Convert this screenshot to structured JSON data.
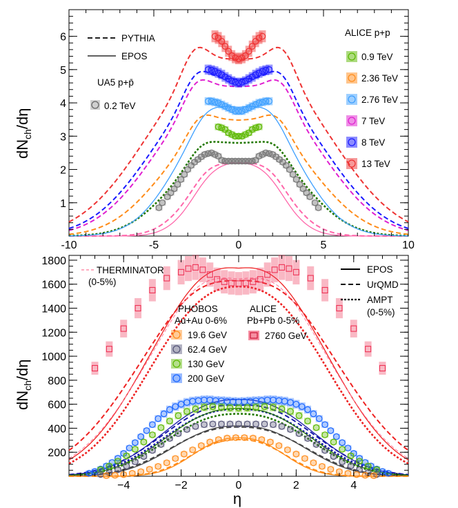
{
  "chart_data": [
    {
      "type": "scatter",
      "panel": "top",
      "ylabel_main": "dN",
      "ylabel_sub": "ch",
      "ylabel_tail": "/dη",
      "xlabel": "",
      "xlim": [
        -10,
        10
      ],
      "ylim": [
        0,
        6.8
      ],
      "xticks": [
        "-10",
        "-5",
        "0",
        "5",
        "10"
      ],
      "yticks": [
        "1",
        "2",
        "3",
        "4",
        "5",
        "6"
      ],
      "legend_models": [
        {
          "label": "PYTHIA",
          "dash": "dashed"
        },
        {
          "label": "EPOS",
          "dash": "solid"
        }
      ],
      "ua5_title": "UA5 p+p̄",
      "ua5_entry": {
        "label": "0.2 TeV",
        "color": "#888888"
      },
      "alice_title": "ALICE p+p",
      "alice_entries": [
        {
          "label": "0.9 TeV",
          "color": "#5cb800"
        },
        {
          "label": "2.36 TeV",
          "color": "#ff8c1a"
        },
        {
          "label": "2.76 TeV",
          "color": "#3d9fff"
        },
        {
          "label": "7 TeV",
          "color": "#e020d0"
        },
        {
          "label": "8 TeV",
          "color": "#1a1aff"
        },
        {
          "label": "13 TeV",
          "color": "#ee3333"
        }
      ],
      "series": [
        {
          "name": "0.2 TeV data",
          "color": "#777777",
          "x": [
            -4.7,
            -4.5,
            -4.2,
            -4.0,
            -3.8,
            -3.6,
            -3.4,
            -3.2,
            -3.0,
            -2.8,
            -2.6,
            -2.4,
            -2.2,
            -2.0,
            -1.8,
            -1.6,
            -1.4,
            -1.2,
            -1.0,
            -0.8,
            -0.6,
            -0.4,
            -0.2,
            0,
            0.2,
            0.4,
            0.6,
            0.8,
            1.0,
            1.2,
            1.4,
            1.6,
            1.8,
            2.0,
            2.2,
            2.4,
            2.6,
            2.8,
            3.0,
            3.2,
            3.4,
            3.6,
            3.8,
            4.0,
            4.2,
            4.5,
            4.7
          ],
          "y": [
            0.85,
            1.0,
            1.18,
            1.3,
            1.42,
            1.55,
            1.7,
            1.85,
            2.0,
            2.12,
            2.22,
            2.3,
            2.38,
            2.45,
            2.48,
            2.5,
            2.45,
            2.4,
            2.28,
            2.25,
            2.25,
            2.25,
            2.25,
            2.25,
            2.25,
            2.25,
            2.25,
            2.25,
            2.28,
            2.4,
            2.45,
            2.5,
            2.48,
            2.45,
            2.38,
            2.3,
            2.22,
            2.12,
            2.0,
            1.85,
            1.7,
            1.55,
            1.42,
            1.3,
            1.18,
            1.0,
            0.85
          ]
        },
        {
          "name": "0.9 TeV data",
          "color": "#5cb800",
          "x": [
            -1.2,
            -1.0,
            -0.8,
            -0.6,
            -0.4,
            -0.2,
            0,
            0.2,
            0.4,
            0.6,
            0.8,
            1.0,
            1.2
          ],
          "y": [
            3.28,
            3.25,
            3.2,
            3.1,
            3.05,
            3.0,
            3.0,
            3.0,
            3.05,
            3.1,
            3.2,
            3.25,
            3.28
          ]
        },
        {
          "name": "2.76 TeV data",
          "color": "#3d9fff",
          "x": [
            -1.8,
            -1.6,
            -1.4,
            -1.2,
            -1.0,
            -0.8,
            -0.6,
            -0.4,
            -0.2,
            0,
            0.2,
            0.4,
            0.6,
            0.8,
            1.0,
            1.2,
            1.4,
            1.6,
            1.8
          ],
          "y": [
            4.05,
            4.05,
            4.02,
            4.0,
            3.95,
            3.9,
            3.85,
            3.8,
            3.75,
            3.75,
            3.75,
            3.8,
            3.85,
            3.9,
            3.95,
            4.0,
            4.02,
            4.05,
            4.05
          ]
        },
        {
          "name": "8 TeV data",
          "color": "#1a1aff",
          "x": [
            -1.8,
            -1.6,
            -1.4,
            -1.2,
            -1.0,
            -0.8,
            -0.6,
            -0.4,
            -0.2,
            0,
            0.2,
            0.4,
            0.6,
            0.8,
            1.0,
            1.2,
            1.4,
            1.6,
            1.8
          ],
          "y": [
            5.0,
            4.98,
            4.95,
            4.9,
            4.85,
            4.78,
            4.72,
            4.66,
            4.62,
            4.6,
            4.62,
            4.66,
            4.72,
            4.78,
            4.85,
            4.9,
            4.95,
            4.98,
            5.0
          ]
        },
        {
          "name": "13 TeV data",
          "color": "#ee3333",
          "x": [
            -1.4,
            -1.2,
            -1.0,
            -0.8,
            -0.6,
            -0.4,
            -0.2,
            0,
            0.2,
            0.4,
            0.6,
            0.8,
            1.0,
            1.2,
            1.4
          ],
          "y": [
            6.0,
            5.95,
            5.85,
            5.7,
            5.55,
            5.42,
            5.35,
            5.32,
            5.35,
            5.42,
            5.55,
            5.7,
            5.85,
            5.95,
            6.0
          ]
        }
      ],
      "curves": [
        {
          "name": "PYTHIA 0.2 TeV",
          "color": "#ff66aa",
          "dash": "dashed",
          "amp": 2.38,
          "dip": 0.08,
          "peak": 2.0,
          "width": 3.5
        },
        {
          "name": "EPOS 0.2 TeV",
          "color": "#ff66aa",
          "dash": "solid",
          "amp": 2.3,
          "dip": 0.05,
          "peak": 2.0,
          "width": 3.1
        },
        {
          "name": "PYTHIA 0.9 TeV",
          "color": "#227700",
          "dash": "dotted",
          "amp": 3.1,
          "dip": 0.1,
          "peak": 2.2,
          "width": 4.8
        },
        {
          "name": "PYTHIA 2.36 TeV",
          "color": "#ff8c1a",
          "dash": "dashed",
          "amp": 3.95,
          "dip": 0.12,
          "peak": 2.3,
          "width": 5.5
        },
        {
          "name": "EPOS 2.76 TeV",
          "color": "#3d9fff",
          "dash": "solid",
          "amp": 4.15,
          "dip": 0.07,
          "peak": 2.0,
          "width": 4.5
        },
        {
          "name": "PYTHIA 7 TeV",
          "color": "#e020d0",
          "dash": "dashed",
          "amp": 5.1,
          "dip": 0.12,
          "peak": 2.5,
          "width": 6.1
        },
        {
          "name": "PYTHIA 8 TeV",
          "color": "#1a1aff",
          "dash": "dashed",
          "amp": 5.35,
          "dip": 0.12,
          "peak": 2.5,
          "width": 6.3
        },
        {
          "name": "PYTHIA 13 TeV",
          "color": "#ee3333",
          "dash": "dashed",
          "amp": 6.1,
          "dip": 0.13,
          "peak": 2.6,
          "width": 6.8
        }
      ]
    },
    {
      "type": "scatter",
      "panel": "bottom",
      "ylabel_main": "dN",
      "ylabel_sub": "ch",
      "ylabel_tail": "/dη",
      "xlabel": "η",
      "xlim": [
        -5.9,
        5.9
      ],
      "ylim": [
        0,
        1840
      ],
      "xticks": [
        "−4",
        "−2",
        "0",
        "2",
        "4"
      ],
      "yticks": [
        "200",
        "400",
        "600",
        "800",
        "1000",
        "1200",
        "1400",
        "1600",
        "1800"
      ],
      "therminator_label": "THERMINATOR",
      "therminator_sub": "(0-5%)",
      "legend_models": [
        {
          "label": "EPOS",
          "dash": "solid"
        },
        {
          "label": "UrQMD",
          "dash": "dashed"
        },
        {
          "label": "AMPT",
          "dash": "dotted"
        }
      ],
      "models_sub": "(0-5%)",
      "phobos_title": "PHOBOS",
      "phobos_sub": "Au+Au 0-6%",
      "phobos_entries": [
        {
          "label": "19.6 GeV",
          "color": "#ff8c1a"
        },
        {
          "label": "62.4 GeV",
          "color": "#555577"
        },
        {
          "label": "130 GeV",
          "color": "#5cb800"
        },
        {
          "label": "200 GeV",
          "color": "#1a66ff"
        }
      ],
      "alice_title": "ALICE",
      "alice_sub": "Pb+Pb 0-5%",
      "alice_entry": {
        "label": "2760 GeV",
        "color": "#ee3355"
      },
      "series": [
        {
          "name": "2760 GeV data",
          "color": "#ee3355",
          "x": [
            -5.0,
            -4.5,
            -4.0,
            -3.5,
            -3.0,
            -2.5,
            -2.0,
            -1.75,
            -1.5,
            -1.25,
            -1.0,
            -0.75,
            -0.5,
            -0.25,
            0,
            0.25,
            0.5,
            0.75,
            1.0,
            1.25,
            1.5,
            1.75,
            2.0,
            2.5,
            3.0,
            3.5,
            4.0,
            4.5,
            5.0
          ],
          "y": [
            900,
            1060,
            1230,
            1400,
            1550,
            1650,
            1700,
            1730,
            1740,
            1720,
            1680,
            1640,
            1620,
            1610,
            1605,
            1610,
            1620,
            1640,
            1680,
            1720,
            1740,
            1730,
            1700,
            1650,
            1550,
            1400,
            1230,
            1060,
            900
          ]
        },
        {
          "name": "200 GeV data",
          "color": "#1a66ff",
          "x": [
            -5.2,
            -5.0,
            -4.8,
            -4.6,
            -4.4,
            -4.2,
            -4.0,
            -3.8,
            -3.6,
            -3.4,
            -3.2,
            -3.0,
            -2.8,
            -2.6,
            -2.4,
            -2.2,
            -2.0,
            -1.8,
            -1.6,
            -1.4,
            -1.2,
            -1.0,
            -0.8,
            -0.6,
            -0.4,
            -0.2,
            0,
            0.2,
            0.4,
            0.6,
            0.8,
            1.0,
            1.2,
            1.4,
            1.6,
            1.8,
            2.0,
            2.2,
            2.4,
            2.6,
            2.8,
            3.0,
            3.2,
            3.4,
            3.6,
            3.8,
            4.0,
            4.2,
            4.4,
            4.6,
            4.8,
            5.0,
            5.2
          ],
          "y": [
            25,
            40,
            60,
            85,
            115,
            150,
            190,
            235,
            280,
            330,
            380,
            430,
            480,
            520,
            555,
            580,
            600,
            615,
            625,
            630,
            635,
            635,
            630,
            628,
            625,
            622,
            620,
            622,
            625,
            628,
            630,
            635,
            635,
            630,
            625,
            615,
            600,
            580,
            555,
            520,
            480,
            430,
            380,
            330,
            280,
            235,
            190,
            150,
            115,
            85,
            60,
            40,
            25
          ]
        },
        {
          "name": "130 GeV data",
          "color": "#5cb800",
          "x": [
            -4.8,
            -4.5,
            -4.2,
            -3.9,
            -3.6,
            -3.3,
            -3.0,
            -2.7,
            -2.4,
            -2.1,
            -1.8,
            -1.5,
            -1.2,
            -0.9,
            -0.6,
            -0.3,
            0,
            0.3,
            0.6,
            0.9,
            1.2,
            1.5,
            1.8,
            2.1,
            2.4,
            2.7,
            3.0,
            3.3,
            3.6,
            3.9,
            4.2,
            4.5,
            4.8
          ],
          "y": [
            55,
            85,
            125,
            170,
            225,
            285,
            345,
            405,
            460,
            505,
            540,
            560,
            575,
            580,
            575,
            570,
            568,
            570,
            575,
            580,
            575,
            560,
            540,
            505,
            460,
            405,
            345,
            285,
            225,
            170,
            125,
            85,
            55
          ]
        },
        {
          "name": "62.4 GeV data",
          "color": "#555577",
          "x": [
            -4.8,
            -4.5,
            -4.2,
            -3.9,
            -3.6,
            -3.3,
            -3.0,
            -2.7,
            -2.4,
            -2.1,
            -1.8,
            -1.5,
            -1.2,
            -0.9,
            -0.6,
            -0.3,
            0,
            0.3,
            0.6,
            0.9,
            1.2,
            1.5,
            1.8,
            2.1,
            2.4,
            2.7,
            3.0,
            3.3,
            3.6,
            3.9,
            4.2,
            4.5,
            4.8
          ],
          "y": [
            15,
            30,
            55,
            85,
            120,
            165,
            215,
            265,
            315,
            355,
            390,
            415,
            430,
            435,
            435,
            435,
            435,
            435,
            435,
            435,
            430,
            415,
            390,
            355,
            315,
            265,
            215,
            165,
            120,
            85,
            55,
            30,
            15
          ]
        },
        {
          "name": "19.6 GeV data",
          "color": "#ff8c1a",
          "x": [
            -4.6,
            -4.3,
            -4.0,
            -3.7,
            -3.4,
            -3.1,
            -2.8,
            -2.5,
            -2.2,
            -1.9,
            -1.6,
            -1.3,
            -1.0,
            -0.7,
            -0.4,
            -0.1,
            0.2,
            0.5,
            0.8,
            1.1,
            1.4,
            1.7,
            2.0,
            2.3,
            2.6,
            2.9,
            3.2,
            3.5,
            3.8,
            4.1,
            4.4,
            4.7
          ],
          "y": [
            5,
            8,
            14,
            24,
            38,
            58,
            82,
            112,
            148,
            185,
            220,
            255,
            285,
            305,
            318,
            322,
            322,
            318,
            305,
            285,
            255,
            220,
            185,
            148,
            112,
            82,
            58,
            38,
            24,
            14,
            8,
            5
          ]
        }
      ],
      "curves": [
        {
          "name": "EPOS 2760",
          "color": "#ee2222",
          "dash": "solid",
          "amp": 1760,
          "dip": 0.02,
          "peak": 1.3,
          "width": 4.0
        },
        {
          "name": "UrQMD 2760",
          "color": "#ee2222",
          "dash": "dashed",
          "amp": 1660,
          "dip": 0.02,
          "peak": 1.8,
          "width": 4.4
        },
        {
          "name": "AMPT 2760",
          "color": "#ee2222",
          "dash": "dotted",
          "amp": 1580,
          "dip": 0.0,
          "peak": 0.0,
          "width": 3.9
        },
        {
          "name": "THERMINATOR",
          "color": "#ff7799",
          "dash": "thin-dashed",
          "amp": 1700,
          "dip": 0.04,
          "peak": 1.5,
          "width": 4.1
        },
        {
          "name": "EPOS 200",
          "color": "#1a1aaa",
          "dash": "solid",
          "amp": 640,
          "dip": 0.0,
          "peak": 0.0,
          "width": 3.3
        },
        {
          "name": "UrQMD 200",
          "color": "#1a1aaa",
          "dash": "dashed",
          "amp": 600,
          "dip": 0.02,
          "peak": 1.2,
          "width": 3.4
        },
        {
          "name": "AMPT 200",
          "color": "#1a1aaa",
          "dash": "dotted",
          "amp": 560,
          "dip": 0.0,
          "peak": 0.0,
          "width": 3.3
        },
        {
          "name": "EPOS 130",
          "color": "#227700",
          "dash": "solid",
          "amp": 565,
          "dip": 0.0,
          "peak": 0.0,
          "width": 3.2
        },
        {
          "name": "AMPT 130",
          "color": "#227700",
          "dash": "dotted",
          "amp": 520,
          "dip": 0.0,
          "peak": 0.0,
          "width": 3.2
        },
        {
          "name": "EPOS 62.4",
          "color": "#444444",
          "dash": "solid",
          "amp": 420,
          "dip": 0.0,
          "peak": 0.0,
          "width": 2.9
        },
        {
          "name": "UrQMD 62.4",
          "color": "#444444",
          "dash": "dashed",
          "amp": 410,
          "dip": 0.0,
          "peak": 0.0,
          "width": 3.0
        },
        {
          "name": "EPOS 19.6",
          "color": "#ff8c1a",
          "dash": "solid",
          "amp": 320,
          "dip": 0.0,
          "peak": 0.0,
          "width": 2.0
        },
        {
          "name": "UrQMD 19.6",
          "color": "#ff8c1a",
          "dash": "dashed",
          "amp": 305,
          "dip": 0.0,
          "peak": 0.0,
          "width": 2.1
        }
      ]
    }
  ]
}
